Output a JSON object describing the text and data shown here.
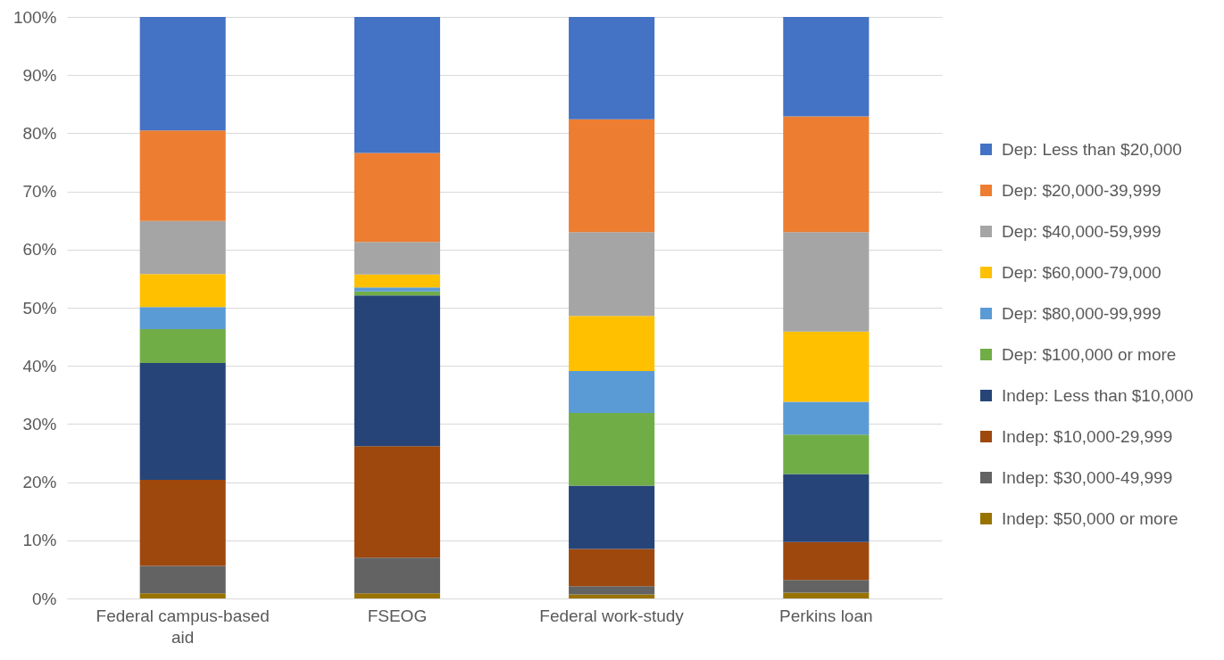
{
  "chart_data": {
    "type": "bar",
    "stacked": true,
    "categories": [
      "Federal campus-based aid",
      "FSEOG",
      "Federal work-study",
      "Perkins loan"
    ],
    "series": [
      {
        "name": "Indep: $50,000 or more",
        "color": "#997300",
        "values": [
          0.9,
          0.9,
          0.7,
          1.0
        ]
      },
      {
        "name": "Indep: $30,000-49,999",
        "color": "#636363",
        "values": [
          4.7,
          6.1,
          1.4,
          2.2
        ]
      },
      {
        "name": "Indep: $10,000-29,999",
        "color": "#9e480e",
        "values": [
          14.8,
          19.2,
          6.4,
          6.5
        ]
      },
      {
        "name": "Indep: Less than $10,000",
        "color": "#264478",
        "values": [
          20.1,
          25.9,
          10.9,
          11.7
        ]
      },
      {
        "name": "Dep: $100,000 or more",
        "color": "#70ad47",
        "values": [
          5.8,
          0.7,
          12.5,
          6.8
        ]
      },
      {
        "name": "Dep: $80,000-99,999",
        "color": "#5b9bd5",
        "values": [
          3.8,
          0.7,
          7.2,
          5.6
        ]
      },
      {
        "name": "Dep: $60,000-79,000",
        "color": "#ffc000",
        "values": [
          5.7,
          2.2,
          9.5,
          12.1
        ]
      },
      {
        "name": "Dep: $40,000-59,999",
        "color": "#a5a5a5",
        "values": [
          9.1,
          5.6,
          14.4,
          17.1
        ]
      },
      {
        "name": "Dep: $20,000-39,999",
        "color": "#ed7d31",
        "values": [
          15.6,
          15.3,
          19.4,
          19.9
        ]
      },
      {
        "name": "Dep: Less than $20,000",
        "color": "#4472c4",
        "values": [
          19.5,
          23.4,
          17.6,
          17.1
        ]
      }
    ],
    "ylim": [
      0,
      100
    ],
    "yticks": [
      {
        "value": 0,
        "label": "0%"
      },
      {
        "value": 10,
        "label": "10%"
      },
      {
        "value": 20,
        "label": "20%"
      },
      {
        "value": 30,
        "label": "30%"
      },
      {
        "value": 40,
        "label": "40%"
      },
      {
        "value": 50,
        "label": "50%"
      },
      {
        "value": 60,
        "label": "60%"
      },
      {
        "value": 70,
        "label": "70%"
      },
      {
        "value": 80,
        "label": "80%"
      },
      {
        "value": 90,
        "label": "90%"
      },
      {
        "value": 100,
        "label": "100%"
      }
    ],
    "grid": "y",
    "legend": "right"
  }
}
